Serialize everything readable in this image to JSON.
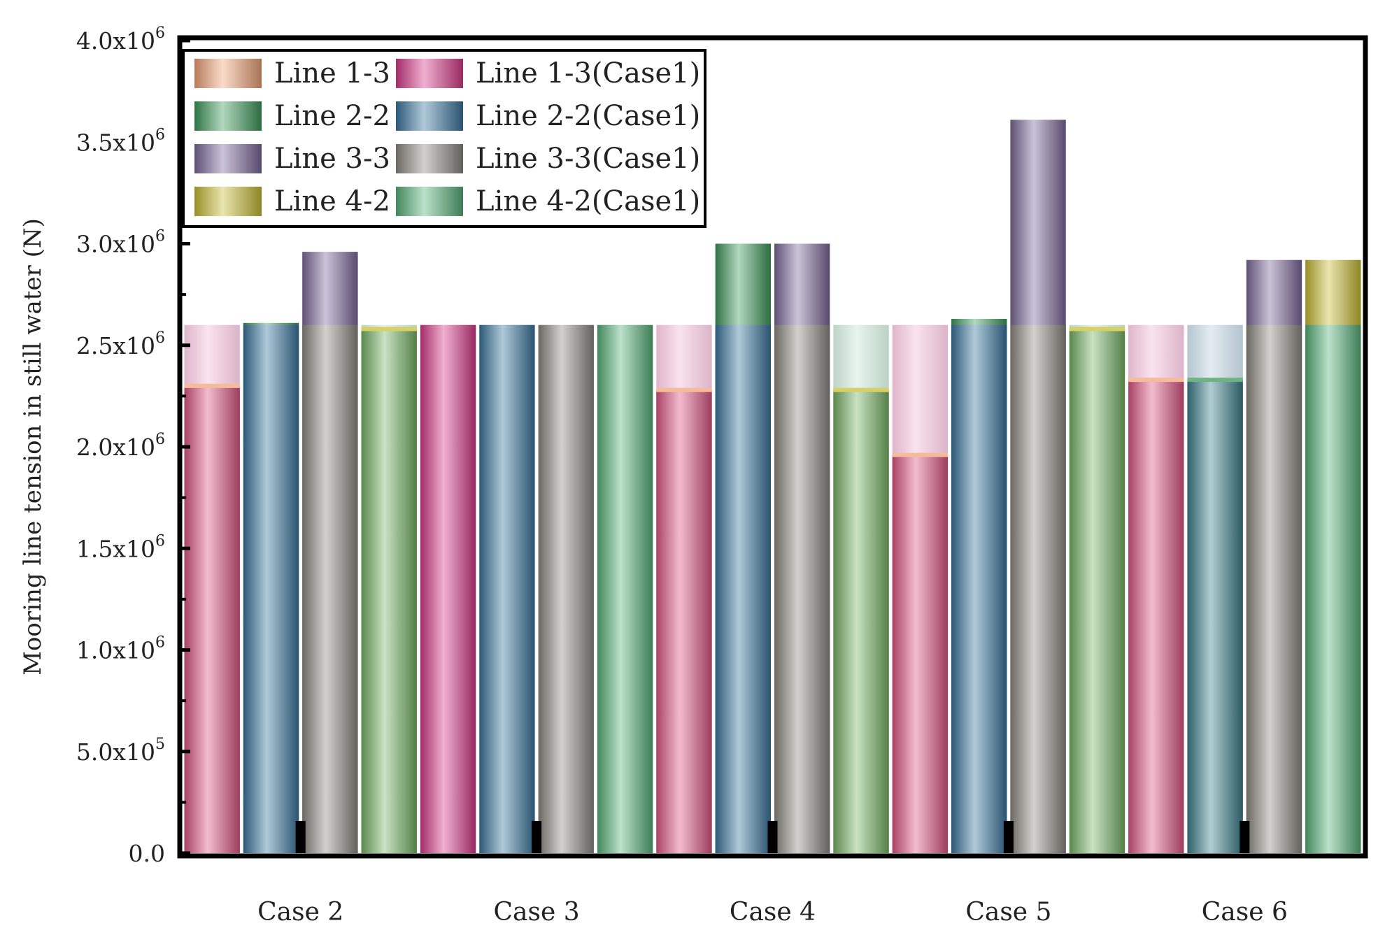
{
  "chart_data": {
    "type": "bar",
    "title": "",
    "xlabel": "",
    "ylabel": "Mooring line tension in still water  (N)",
    "ylim": [
      0,
      4000000
    ],
    "yticks": [
      {
        "value": 0,
        "mantissa": "0.0",
        "exp": ""
      },
      {
        "value": 500000,
        "mantissa": "5.0x10",
        "exp": "5"
      },
      {
        "value": 1000000,
        "mantissa": "1.0x10",
        "exp": "6"
      },
      {
        "value": 1500000,
        "mantissa": "1.5x10",
        "exp": "6"
      },
      {
        "value": 2000000,
        "mantissa": "2.0x10",
        "exp": "6"
      },
      {
        "value": 2500000,
        "mantissa": "2.5x10",
        "exp": "6"
      },
      {
        "value": 3000000,
        "mantissa": "3.0x10",
        "exp": "6"
      },
      {
        "value": 3500000,
        "mantissa": "3.5x10",
        "exp": "6"
      },
      {
        "value": 4000000,
        "mantissa": "4.0x10",
        "exp": "6"
      }
    ],
    "categories": [
      "Case 2",
      "Case 3",
      "Case 4",
      "Case 5",
      "Case 6"
    ],
    "legend_position": "top-left",
    "grid": false,
    "bar_slots": [
      {
        "current": "Line 1-3",
        "reference": "Line 1-3(Case1)"
      },
      {
        "current": "Line 2-2",
        "reference": "Line 2-2(Case1)"
      },
      {
        "current": "Line 3-3",
        "reference": "Line 3-3(Case1)"
      },
      {
        "current": "Line 4-2",
        "reference": "Line 4-2(Case1)"
      }
    ],
    "series": [
      {
        "name": "Line 1-3",
        "values": [
          2300000,
          2600000,
          2280000,
          1960000,
          2330000
        ],
        "color": "#f2a478"
      },
      {
        "name": "Line 2-2",
        "values": [
          2610000,
          2600000,
          3000000,
          2630000,
          2330000
        ],
        "color": "#3f9a5c"
      },
      {
        "name": "Line 3-3",
        "values": [
          2960000,
          2600000,
          3000000,
          3610000,
          2920000
        ],
        "color": "#7d6a9c"
      },
      {
        "name": "Line 4-2",
        "values": [
          2580000,
          2600000,
          2280000,
          2580000,
          2920000
        ],
        "color": "#c9bf35"
      },
      {
        "name": "Line 1-3(Case1)",
        "values": [
          2600000,
          2600000,
          2600000,
          2600000,
          2600000
        ],
        "color": "#d93a8a"
      },
      {
        "name": "Line 2-2(Case1)",
        "values": [
          2600000,
          2600000,
          2600000,
          2600000,
          2600000
        ],
        "color": "#3a77a0"
      },
      {
        "name": "Line 3-3(Case1)",
        "values": [
          2600000,
          2600000,
          2600000,
          2600000,
          2600000
        ],
        "color": "#8e8b83"
      },
      {
        "name": "Line 4-2(Case1)",
        "values": [
          2600000,
          2600000,
          2600000,
          2600000,
          2600000
        ],
        "color": "#58b37a"
      }
    ]
  }
}
